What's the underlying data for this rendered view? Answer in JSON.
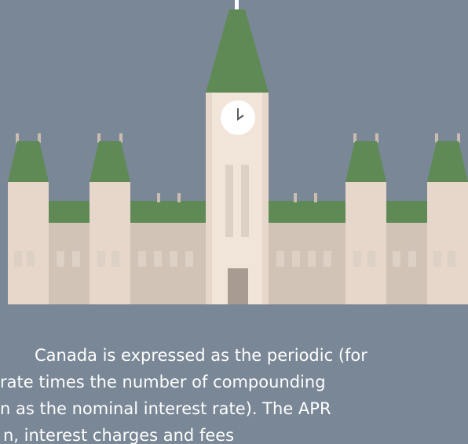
{
  "text_lines": [
    "Canada is expressed as the periodic (for",
    "rate times the number of compounding",
    "n as the nominal interest rate). The APR",
    "n, interest charges and fees"
  ]
}
